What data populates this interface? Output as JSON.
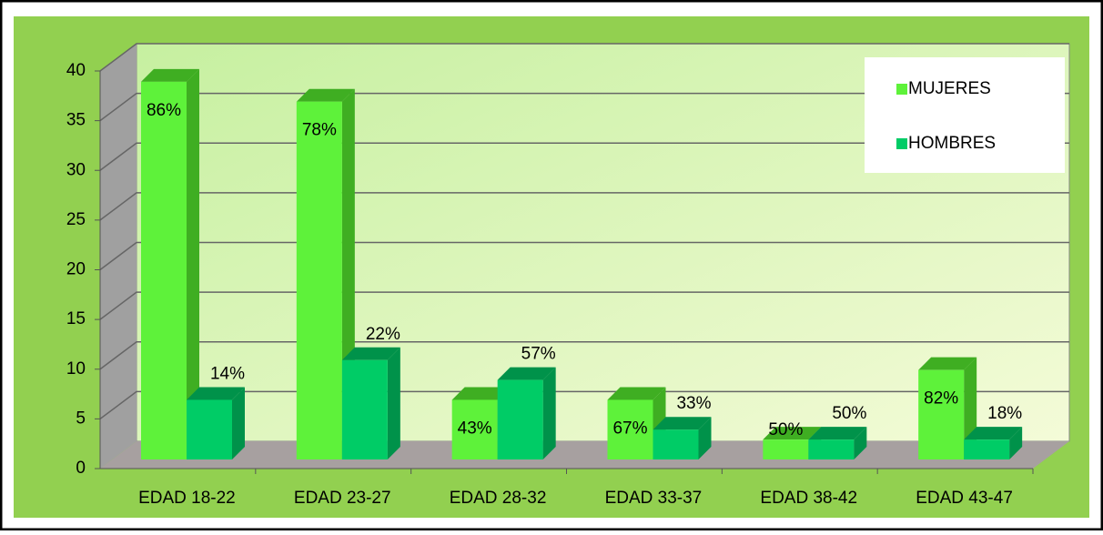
{
  "chart_data": {
    "type": "bar3d",
    "categories": [
      "EDAD 18-22",
      "EDAD 23-27",
      "EDAD 28-32",
      "EDAD 33-37",
      "EDAD 38-42",
      "EDAD 43-47"
    ],
    "series": [
      {
        "name": "MUJERES",
        "color": "#5ef23a",
        "side": "#3fae22",
        "values": [
          38,
          36,
          6,
          6,
          2,
          9
        ],
        "percent_labels": [
          "86%",
          "78%",
          "43%",
          "67%",
          "50%",
          "82%"
        ]
      },
      {
        "name": "HOMBRES",
        "color": "#00cc66",
        "side": "#00924a",
        "values": [
          6,
          10,
          8,
          3,
          2,
          2
        ],
        "percent_labels": [
          "14%",
          "22%",
          "57%",
          "33%",
          "50%",
          "18%"
        ]
      }
    ],
    "ylim": [
      0,
      40
    ],
    "yticks": [
      0,
      5,
      10,
      15,
      20,
      25,
      30,
      35,
      40
    ],
    "grid": true,
    "legend": "upper right"
  }
}
